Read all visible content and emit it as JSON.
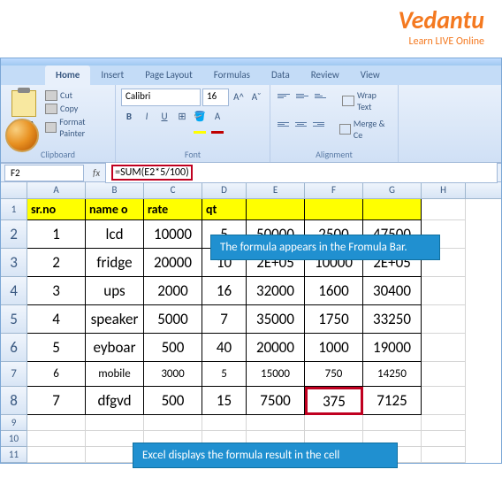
{
  "logo": {
    "text": "Vedantu",
    "subtext": "Learn LIVE Online"
  },
  "tabs": [
    "Home",
    "Insert",
    "Page Layout",
    "Formulas",
    "Data",
    "Review",
    "View"
  ],
  "ribbon": {
    "clipboard": {
      "paste": "Paste",
      "cut": "Cut",
      "copy": "Copy",
      "format_painter": "Format Painter",
      "label": "Clipboard"
    },
    "font": {
      "name": "Calibri",
      "size": "16",
      "label": "Font",
      "fill_color": "#ffff00",
      "font_color": "#c00000"
    },
    "alignment": {
      "wrap": "Wrap Text",
      "merge": "Merge & Ce",
      "label": "Alignment"
    }
  },
  "formula_bar": {
    "cell_ref": "F2",
    "fx": "fx",
    "formula": "=SUM(E2*5/100)"
  },
  "columns": [
    "A",
    "B",
    "C",
    "D",
    "E",
    "F",
    "G",
    "H"
  ],
  "header_row": [
    "sr.no",
    "name o",
    "rate",
    "qt",
    "",
    "",
    "",
    ""
  ],
  "data_rows": [
    {
      "n": "2",
      "cells": [
        "1",
        "lcd",
        "10000",
        "5",
        "50000",
        "2500",
        "47500"
      ],
      "h": "h32"
    },
    {
      "n": "3",
      "cells": [
        "2",
        "fridge",
        "20000",
        "10",
        "2E+05",
        "10000",
        "2E+05"
      ],
      "h": "h32"
    },
    {
      "n": "4",
      "cells": [
        "3",
        "ups",
        "2000",
        "16",
        "32000",
        "1600",
        "30400"
      ],
      "h": "h32"
    },
    {
      "n": "5",
      "cells": [
        "4",
        "speaker",
        "5000",
        "7",
        "35000",
        "1750",
        "33250"
      ],
      "h": "h32"
    },
    {
      "n": "6",
      "cells": [
        "5",
        "eyboar",
        "500",
        "40",
        "20000",
        "1000",
        "19000"
      ],
      "h": "h32"
    },
    {
      "n": "7",
      "cells": [
        "6",
        "mobile",
        "3000",
        "5",
        "15000",
        "750",
        "14250"
      ],
      "h": "h28"
    },
    {
      "n": "8",
      "cells": [
        "7",
        "dfgvd",
        "500",
        "15",
        "7500",
        "375",
        "7125"
      ],
      "h": "h32"
    }
  ],
  "empty_rows": [
    "9",
    "10",
    "11"
  ],
  "callouts": {
    "c1": "The formula appears in the Fromula Bar.",
    "c2": "Excel displays the formula result in the cell"
  },
  "highlighted_cell": {
    "row": 8,
    "col": "F"
  },
  "colors": {
    "header_bg": "#ffff00",
    "callout_bg": "#2090d0",
    "highlight_border": "#c00020",
    "logo_color": "#f47920"
  }
}
